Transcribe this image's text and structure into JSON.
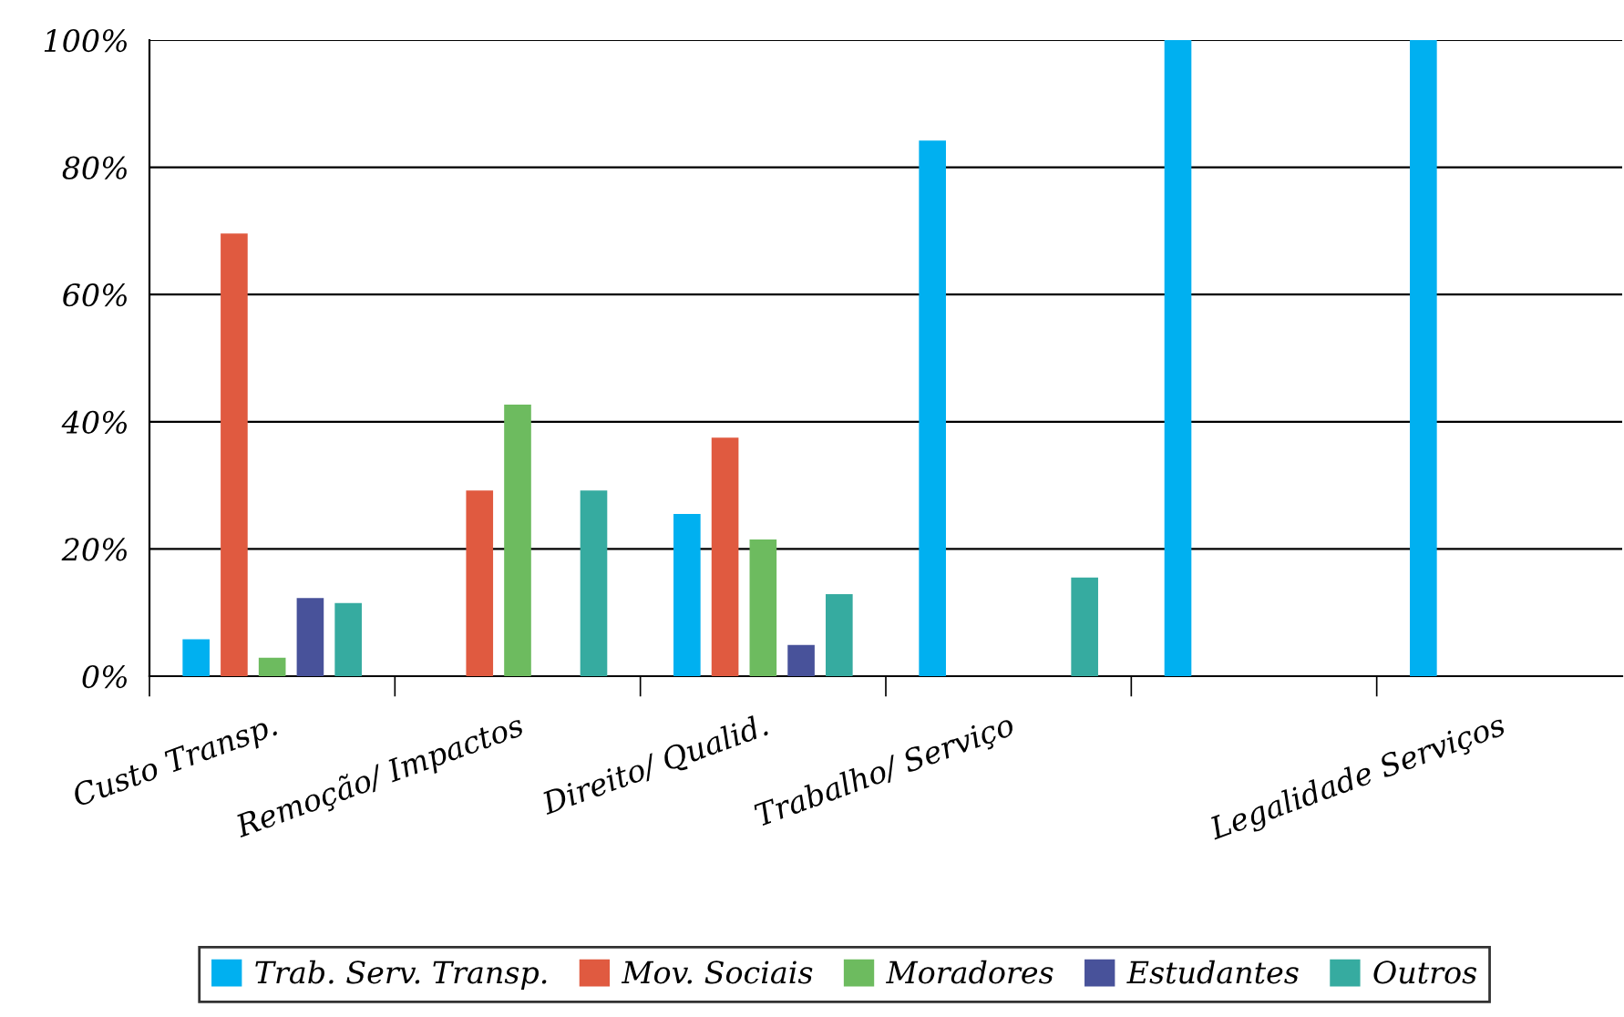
{
  "chart_data": {
    "type": "bar",
    "categories": [
      "Custo Transp.",
      "Remoção/ Impactos",
      "Direito/ Qualid.",
      "Trabalho/ Serviço",
      null,
      "Legalidade Serviços"
    ],
    "series": [
      {
        "name": "Trab. Serv. Transp.",
        "color": "#00b0f0",
        "values": [
          5.8,
          null,
          25.5,
          84.2,
          100,
          100
        ]
      },
      {
        "name": "Mov. Sociais",
        "color": "#e05a40",
        "values": [
          69.6,
          29.2,
          37.5,
          null,
          null,
          null
        ]
      },
      {
        "name": "Moradores",
        "color": "#6dbb5f",
        "values": [
          2.9,
          42.7,
          21.5,
          null,
          null,
          null
        ]
      },
      {
        "name": "Estudantes",
        "color": "#48529a",
        "values": [
          12.3,
          null,
          4.9,
          null,
          null,
          null
        ]
      },
      {
        "name": "Outros",
        "color": "#36aba0",
        "values": [
          11.5,
          29.2,
          12.9,
          15.5,
          null,
          null
        ]
      }
    ],
    "ylim": [
      0,
      100
    ],
    "yticks": [
      {
        "value": 0,
        "label": "0%"
      },
      {
        "value": 20,
        "label": "20%"
      },
      {
        "value": 40,
        "label": "40%"
      },
      {
        "value": 60,
        "label": "60%"
      },
      {
        "value": 80,
        "label": "80%"
      },
      {
        "value": 100,
        "label": "100%"
      }
    ],
    "grid": "y",
    "legend": "bottom"
  }
}
